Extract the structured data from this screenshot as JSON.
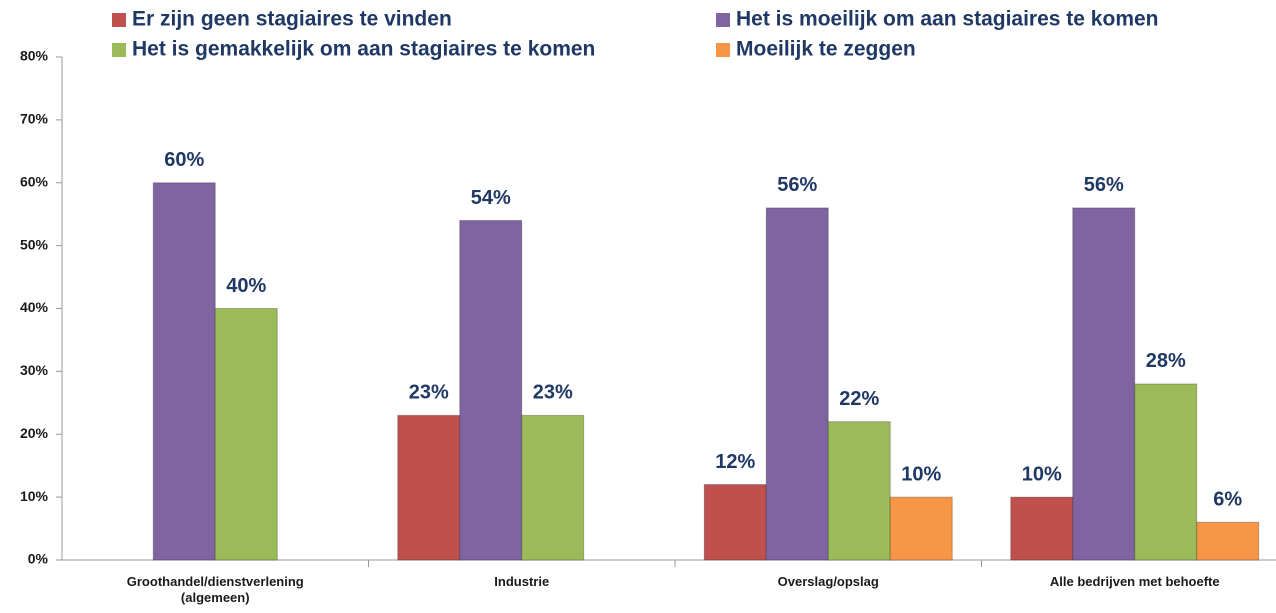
{
  "chart_data": {
    "type": "bar",
    "categories": [
      "Groothandel/dienstverlening (algemeen)",
      "Industrie",
      "Overslag/opslag",
      "Alle bedrijven met behoefte"
    ],
    "series": [
      {
        "name": "Er zijn geen stagiaires te vinden",
        "color": "#c0504d",
        "values": [
          null,
          23,
          12,
          10
        ],
        "value_labels": [
          null,
          "23%",
          "12%",
          "10%"
        ]
      },
      {
        "name": "Het is moeilijk om aan stagiaires te komen",
        "color": "#8064a2",
        "values": [
          60,
          54,
          56,
          56
        ],
        "value_labels": [
          "60%",
          "54%",
          "56%",
          "56%"
        ]
      },
      {
        "name": "Het is gemakkelijk om aan stagiaires te komen",
        "color": "#9bbb59",
        "values": [
          40,
          23,
          22,
          28
        ],
        "value_labels": [
          "40%",
          "23%",
          "22%",
          "28%"
        ]
      },
      {
        "name": "Moeilijk te zeggen",
        "color": "#f79646",
        "values": [
          null,
          null,
          10,
          6
        ],
        "value_labels": [
          null,
          null,
          "10%",
          "6%"
        ]
      }
    ],
    "ylim": [
      0,
      80
    ],
    "yticks": [
      {
        "value": 0,
        "label": "0%"
      },
      {
        "value": 10,
        "label": "10%"
      },
      {
        "value": 20,
        "label": "20%"
      },
      {
        "value": 30,
        "label": "30%"
      },
      {
        "value": 40,
        "label": "40%"
      },
      {
        "value": 50,
        "label": "50%"
      },
      {
        "value": 60,
        "label": "60%"
      },
      {
        "value": 70,
        "label": "70%"
      },
      {
        "value": 80,
        "label": "80%"
      }
    ],
    "legend": "top"
  }
}
